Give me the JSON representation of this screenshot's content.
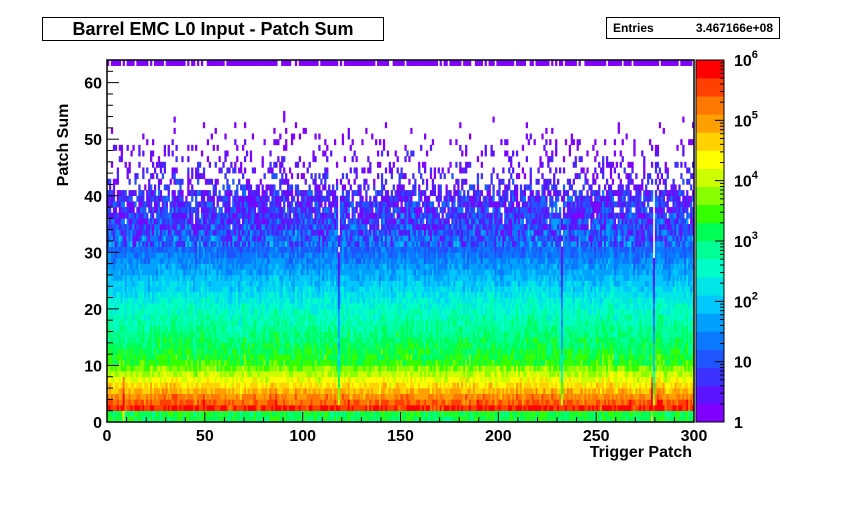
{
  "chart_data": {
    "type": "heatmap",
    "title": "Barrel EMC L0 Input - Patch Sum",
    "stats": {
      "label": "Entries",
      "value": "3.467166e+08"
    },
    "xlabel": "Trigger Patch",
    "ylabel": "Patch Sum",
    "xlim": [
      0,
      300
    ],
    "ylim": [
      0,
      64
    ],
    "x_ticks": [
      "0",
      "50",
      "100",
      "150",
      "200",
      "250",
      "300"
    ],
    "y_ticks": [
      "0",
      "10",
      "20",
      "30",
      "40",
      "50",
      "60"
    ],
    "zscale": "log",
    "zlim": [
      1,
      1000000
    ],
    "z_ticks": [
      {
        "base": "1",
        "exp": ""
      },
      {
        "base": "10",
        "exp": ""
      },
      {
        "base": "10",
        "exp": "2"
      },
      {
        "base": "10",
        "exp": "3"
      },
      {
        "base": "10",
        "exp": "4"
      },
      {
        "base": "10",
        "exp": "5"
      },
      {
        "base": "10",
        "exp": "6"
      }
    ],
    "palette": [
      "#7f00ff",
      "#5a14ff",
      "#3c32ff",
      "#1e55ff",
      "#0a78ff",
      "#00a0ff",
      "#00c8ff",
      "#00e6e6",
      "#00ffc8",
      "#00ff96",
      "#00ff55",
      "#33ff00",
      "#88ff00",
      "#ccff00",
      "#ffff00",
      "#ffd200",
      "#ffa000",
      "#ff7800",
      "#ff4000",
      "#ff0000"
    ],
    "description_profile": {
      "sum_1_2_log10_counts": 5.7,
      "sum_10_log10_counts": 3.4,
      "sum_20_log10_counts": 2.5,
      "sum_30_log10_counts": 1.2,
      "sum_40_log10_counts": 0.4,
      "top_row_sum": 63,
      "hot_patches": [
        8,
        278
      ],
      "dead_patches": [
        118,
        232,
        279
      ]
    }
  }
}
